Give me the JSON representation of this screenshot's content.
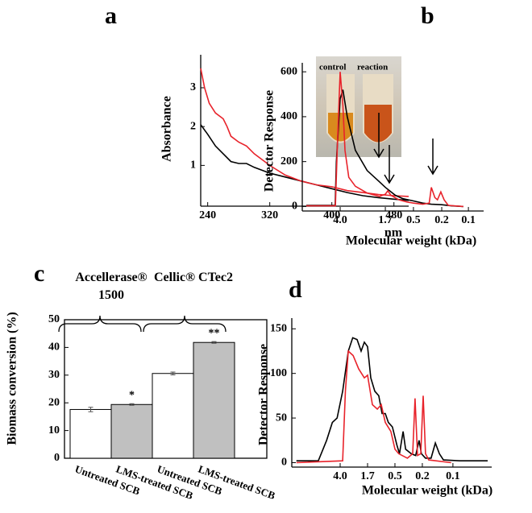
{
  "chart_data": [
    {
      "type": "line",
      "panel": "a",
      "xlabel": "nm",
      "ylabel": "Absorbance",
      "xlim": [
        231,
        499
      ],
      "ylim": [
        -0.05,
        3.85
      ],
      "xticks": [
        240,
        320,
        400,
        480
      ],
      "yticks": [
        1,
        2,
        3
      ],
      "annotations": [
        "control",
        "reaction"
      ],
      "series": [
        {
          "color": "#000000",
          "x": [
            231,
            240,
            250,
            260,
            270,
            280,
            290,
            300,
            320,
            340,
            360,
            380,
            400,
            420,
            440,
            460,
            480,
            499
          ],
          "values": [
            2.05,
            1.8,
            1.5,
            1.3,
            1.1,
            1.05,
            1.05,
            0.95,
            0.8,
            0.7,
            0.6,
            0.5,
            0.4,
            0.3,
            0.22,
            0.17,
            0.13,
            0.1
          ]
        },
        {
          "color": "#e8232b",
          "x": [
            231,
            236,
            242,
            250,
            260,
            265,
            270,
            280,
            290,
            300,
            320,
            340,
            360,
            380,
            400,
            420,
            440,
            460,
            480,
            499
          ],
          "values": [
            3.5,
            3.0,
            2.6,
            2.35,
            2.2,
            2.0,
            1.75,
            1.6,
            1.5,
            1.3,
            1.0,
            0.75,
            0.6,
            0.5,
            0.45,
            0.35,
            0.3,
            0.25,
            0.22,
            0.2
          ]
        }
      ]
    },
    {
      "type": "line",
      "panel": "b",
      "xlabel": "Molecular weight (kDa)",
      "ylabel": "Detector Response",
      "xlim": [
        8.2,
        0.067
      ],
      "ylim": [
        -20,
        640
      ],
      "xticks": [
        {
          "value": 4,
          "label": "4.0"
        },
        1.7,
        0.5,
        0.2,
        0.1
      ],
      "yticks": [
        0,
        200,
        400,
        600
      ],
      "series": [
        {
          "color": "#000000",
          "x": [
            7.6,
            4.4,
            4.3,
            4.0,
            3.8,
            3.5,
            3.0,
            2.4,
            1.9,
            1.7,
            1.1,
            0.79,
            0.5,
            0.37,
            0.28,
            0.2,
            0.156,
            0.114
          ],
          "values": [
            5,
            5,
            200,
            480,
            520,
            400,
            250,
            160,
            110,
            85,
            50,
            35,
            25,
            15,
            10,
            8,
            3,
            0
          ]
        },
        {
          "color": "#e8232b",
          "x": [
            7.6,
            4.38,
            4.2,
            4.0,
            3.8,
            3.65,
            3.4,
            3.0,
            2.4,
            1.9,
            1.7,
            1.53,
            1.33,
            0.94,
            0.66,
            0.5,
            0.37,
            0.3,
            0.28,
            0.25,
            0.23,
            0.206,
            0.188,
            0.169,
            0.114
          ],
          "values": [
            3,
            3,
            300,
            600,
            450,
            250,
            130,
            90,
            60,
            45,
            55,
            70,
            50,
            30,
            20,
            15,
            10,
            15,
            85,
            40,
            30,
            65,
            30,
            5,
            0
          ]
        }
      ]
    },
    {
      "type": "bar",
      "panel": "c",
      "ylabel": "Biomass conversion (%)",
      "categories": [
        "Untreated SCB",
        "LMS-treated SCB",
        "Untreated SCB",
        "LMS-treated SCB"
      ],
      "values": [
        17.6,
        19.4,
        30.6,
        41.8
      ],
      "errors": [
        0.8,
        0.3,
        0.5,
        0.3
      ],
      "colors": [
        "#ffffff",
        "#c0c0c0",
        "#ffffff",
        "#c0c0c0"
      ],
      "significance": [
        null,
        "*",
        null,
        "**"
      ],
      "groups": [
        "Accellerase® 1500",
        "Cellic® CTec2"
      ],
      "ylim": [
        0,
        50
      ],
      "yticks": [
        0,
        10,
        20,
        30,
        40,
        50
      ]
    },
    {
      "type": "line",
      "panel": "d",
      "xlabel": "Molecular weight (kDa)",
      "ylabel": "Detector Response",
      "xlim": [
        18,
        0.042
      ],
      "ylim": [
        -5,
        162
      ],
      "xticks": [
        {
          "value": 4,
          "label": "4.0"
        },
        1.7,
        0.5,
        0.2,
        0.1
      ],
      "yticks": [
        0,
        50,
        100,
        150
      ],
      "series": [
        {
          "color": "#000000",
          "x": [
            15.6,
            7.9,
            6.1,
            5.1,
            4.4,
            3.7,
            3.1,
            2.7,
            2.36,
            2.08,
            1.88,
            1.7,
            1.47,
            1.23,
            1.03,
            0.89,
            0.77,
            0.67,
            0.56,
            0.47,
            0.43,
            0.38,
            0.35,
            0.29,
            0.25,
            0.223,
            0.206,
            0.186,
            0.164,
            0.149,
            0.136,
            0.124,
            0.086,
            0.046
          ],
          "values": [
            2,
            2,
            25,
            45,
            50,
            80,
            125,
            140,
            138,
            125,
            135,
            130,
            95,
            80,
            75,
            55,
            55,
            45,
            40,
            20,
            10,
            35,
            15,
            10,
            8,
            25,
            10,
            5,
            5,
            22,
            10,
            3,
            2,
            2
          ]
        },
        {
          "color": "#e8232b",
          "x": [
            15.6,
            3.7,
            3.4,
            3.1,
            2.67,
            2.24,
            1.88,
            1.7,
            1.37,
            1.1,
            0.92,
            0.77,
            0.6,
            0.5,
            0.44,
            0.33,
            0.276,
            0.255,
            0.235,
            0.211,
            0.196,
            0.186,
            0.173,
            0.104
          ],
          "values": [
            0,
            2,
            80,
            125,
            120,
            105,
            95,
            98,
            65,
            60,
            65,
            45,
            35,
            15,
            10,
            5,
            10,
            72,
            8,
            10,
            75,
            10,
            3,
            0
          ]
        }
      ]
    }
  ]
}
